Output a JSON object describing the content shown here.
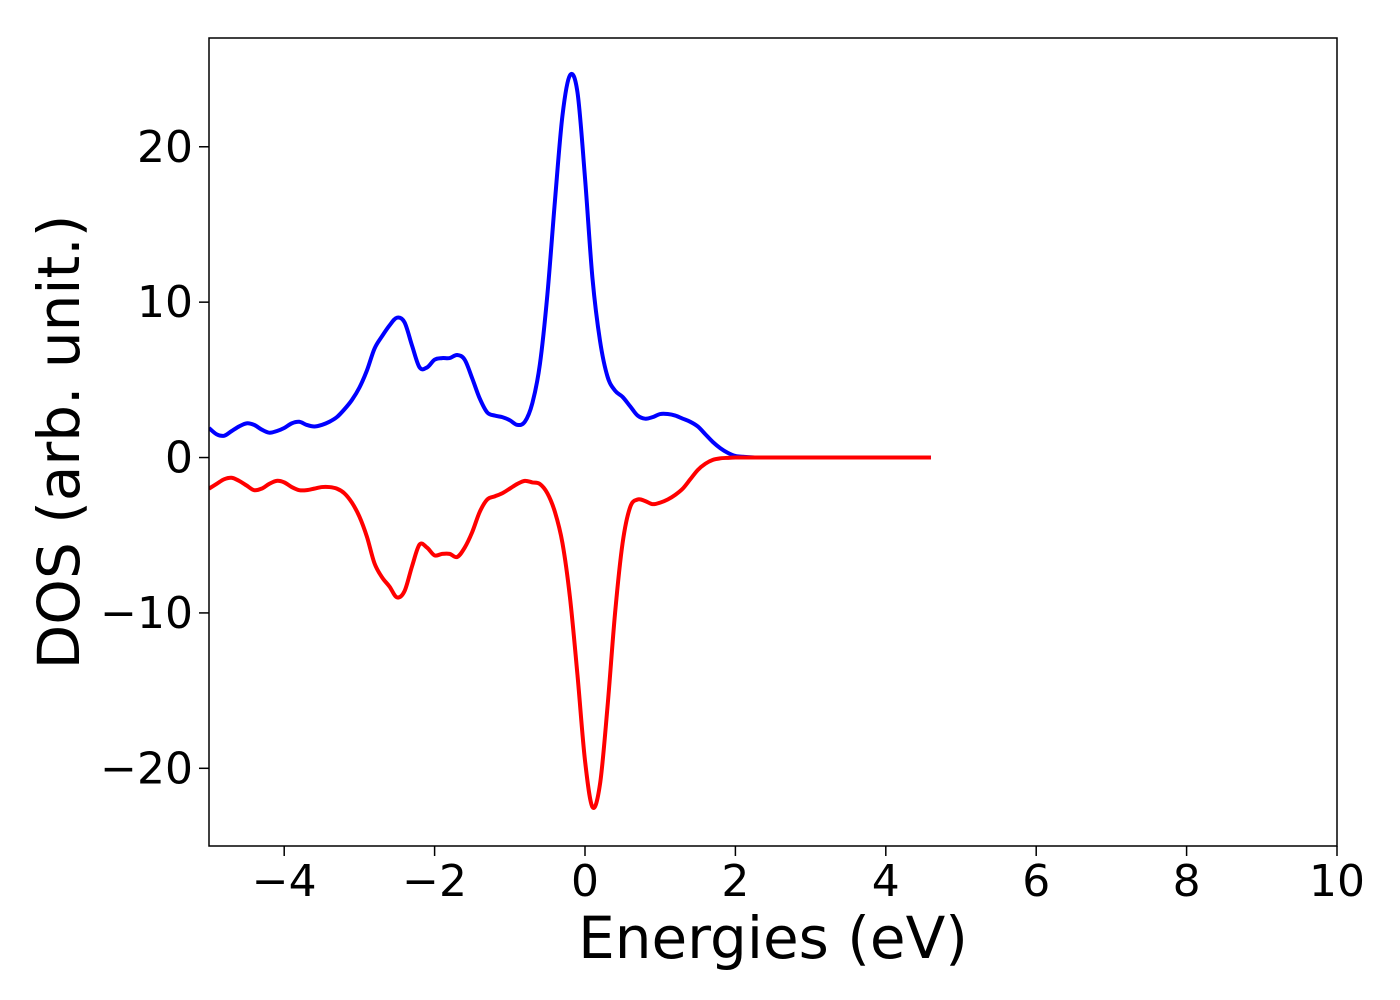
{
  "chart_data": {
    "type": "line",
    "title": "",
    "xlabel": "Energies (eV)",
    "ylabel": "DOS (arb. unit.)",
    "xlim": [
      -5,
      10
    ],
    "ylim": [
      -25,
      27
    ],
    "xticks": [
      -4,
      -2,
      0,
      2,
      4,
      6,
      8,
      10
    ],
    "xtick_labels": [
      "−4",
      "−2",
      "0",
      "2",
      "4",
      "6",
      "8",
      "10"
    ],
    "yticks": [
      -20,
      -10,
      0,
      10,
      20
    ],
    "ytick_labels": [
      "−20",
      "−10",
      "0",
      "10",
      "20"
    ],
    "grid": false,
    "legend": "none",
    "series": [
      {
        "color": "#0000ff",
        "x": [
          -5.0,
          -4.9,
          -4.8,
          -4.7,
          -4.6,
          -4.5,
          -4.4,
          -4.3,
          -4.2,
          -4.1,
          -4.0,
          -3.9,
          -3.8,
          -3.7,
          -3.6,
          -3.5,
          -3.4,
          -3.3,
          -3.2,
          -3.1,
          -3.0,
          -2.9,
          -2.8,
          -2.7,
          -2.6,
          -2.5,
          -2.4,
          -2.3,
          -2.2,
          -2.1,
          -2.0,
          -1.9,
          -1.8,
          -1.7,
          -1.6,
          -1.5,
          -1.4,
          -1.3,
          -1.2,
          -1.1,
          -1.0,
          -0.9,
          -0.8,
          -0.7,
          -0.6,
          -0.5,
          -0.4,
          -0.3,
          -0.2,
          -0.1,
          0.0,
          0.1,
          0.2,
          0.3,
          0.4,
          0.5,
          0.6,
          0.7,
          0.8,
          0.9,
          1.0,
          1.1,
          1.2,
          1.3,
          1.4,
          1.5,
          1.6,
          1.7,
          1.8,
          1.9,
          2.0,
          2.1,
          2.2,
          2.3,
          2.4,
          2.5,
          2.6,
          2.7,
          2.8,
          3.0,
          3.5,
          4.0,
          4.6
        ],
        "y": [
          1.9,
          1.5,
          1.4,
          1.7,
          2.0,
          2.2,
          2.1,
          1.8,
          1.6,
          1.7,
          1.9,
          2.2,
          2.3,
          2.1,
          2.0,
          2.1,
          2.3,
          2.6,
          3.1,
          3.7,
          4.5,
          5.6,
          7.0,
          7.8,
          8.5,
          9.0,
          8.7,
          7.2,
          5.8,
          5.8,
          6.3,
          6.4,
          6.4,
          6.6,
          6.3,
          5.1,
          3.8,
          2.9,
          2.7,
          2.6,
          2.4,
          2.1,
          2.3,
          3.5,
          6.0,
          10.5,
          16.5,
          22.0,
          24.6,
          23.5,
          18.0,
          11.5,
          7.5,
          5.2,
          4.3,
          3.9,
          3.3,
          2.7,
          2.5,
          2.6,
          2.8,
          2.8,
          2.7,
          2.5,
          2.3,
          2.0,
          1.5,
          1.0,
          0.6,
          0.3,
          0.1,
          0.05,
          0.02,
          0.0,
          0.0,
          0.0,
          0.0,
          0.0,
          0.0,
          0.0,
          0.0,
          0.0,
          0.0
        ]
      },
      {
        "color": "#ff0000",
        "x": [
          -5.0,
          -4.9,
          -4.8,
          -4.7,
          -4.6,
          -4.5,
          -4.4,
          -4.3,
          -4.2,
          -4.1,
          -4.0,
          -3.9,
          -3.8,
          -3.7,
          -3.6,
          -3.5,
          -3.4,
          -3.3,
          -3.2,
          -3.1,
          -3.0,
          -2.9,
          -2.8,
          -2.7,
          -2.6,
          -2.5,
          -2.4,
          -2.3,
          -2.2,
          -2.1,
          -2.0,
          -1.9,
          -1.8,
          -1.7,
          -1.6,
          -1.5,
          -1.4,
          -1.3,
          -1.2,
          -1.1,
          -1.0,
          -0.9,
          -0.8,
          -0.7,
          -0.6,
          -0.5,
          -0.4,
          -0.3,
          -0.2,
          -0.1,
          0.0,
          0.1,
          0.2,
          0.3,
          0.4,
          0.5,
          0.6,
          0.7,
          0.8,
          0.9,
          1.0,
          1.1,
          1.2,
          1.3,
          1.4,
          1.5,
          1.6,
          1.7,
          1.8,
          1.9,
          2.0,
          2.1,
          2.2,
          2.3,
          2.4,
          2.5,
          2.6,
          2.7,
          2.8,
          3.0,
          3.5,
          4.0,
          4.6
        ],
        "y": [
          -2.0,
          -1.7,
          -1.4,
          -1.3,
          -1.5,
          -1.8,
          -2.1,
          -2.0,
          -1.7,
          -1.5,
          -1.6,
          -1.9,
          -2.1,
          -2.1,
          -2.0,
          -1.9,
          -1.9,
          -2.0,
          -2.3,
          -2.9,
          -3.8,
          -5.1,
          -6.8,
          -7.7,
          -8.3,
          -9.0,
          -8.6,
          -7.0,
          -5.6,
          -5.8,
          -6.3,
          -6.2,
          -6.2,
          -6.4,
          -5.8,
          -4.8,
          -3.5,
          -2.7,
          -2.5,
          -2.3,
          -2.0,
          -1.7,
          -1.5,
          -1.6,
          -1.7,
          -2.3,
          -3.5,
          -5.5,
          -9.0,
          -14.0,
          -19.5,
          -22.5,
          -21.0,
          -16.0,
          -10.0,
          -5.5,
          -3.2,
          -2.7,
          -2.8,
          -3.0,
          -2.9,
          -2.7,
          -2.4,
          -2.0,
          -1.4,
          -0.8,
          -0.4,
          -0.15,
          -0.05,
          -0.02,
          0.0,
          0.0,
          0.0,
          0.0,
          0.0,
          0.0,
          0.0,
          0.0,
          0.0,
          0.0,
          0.0,
          0.0,
          0.0
        ]
      }
    ]
  }
}
